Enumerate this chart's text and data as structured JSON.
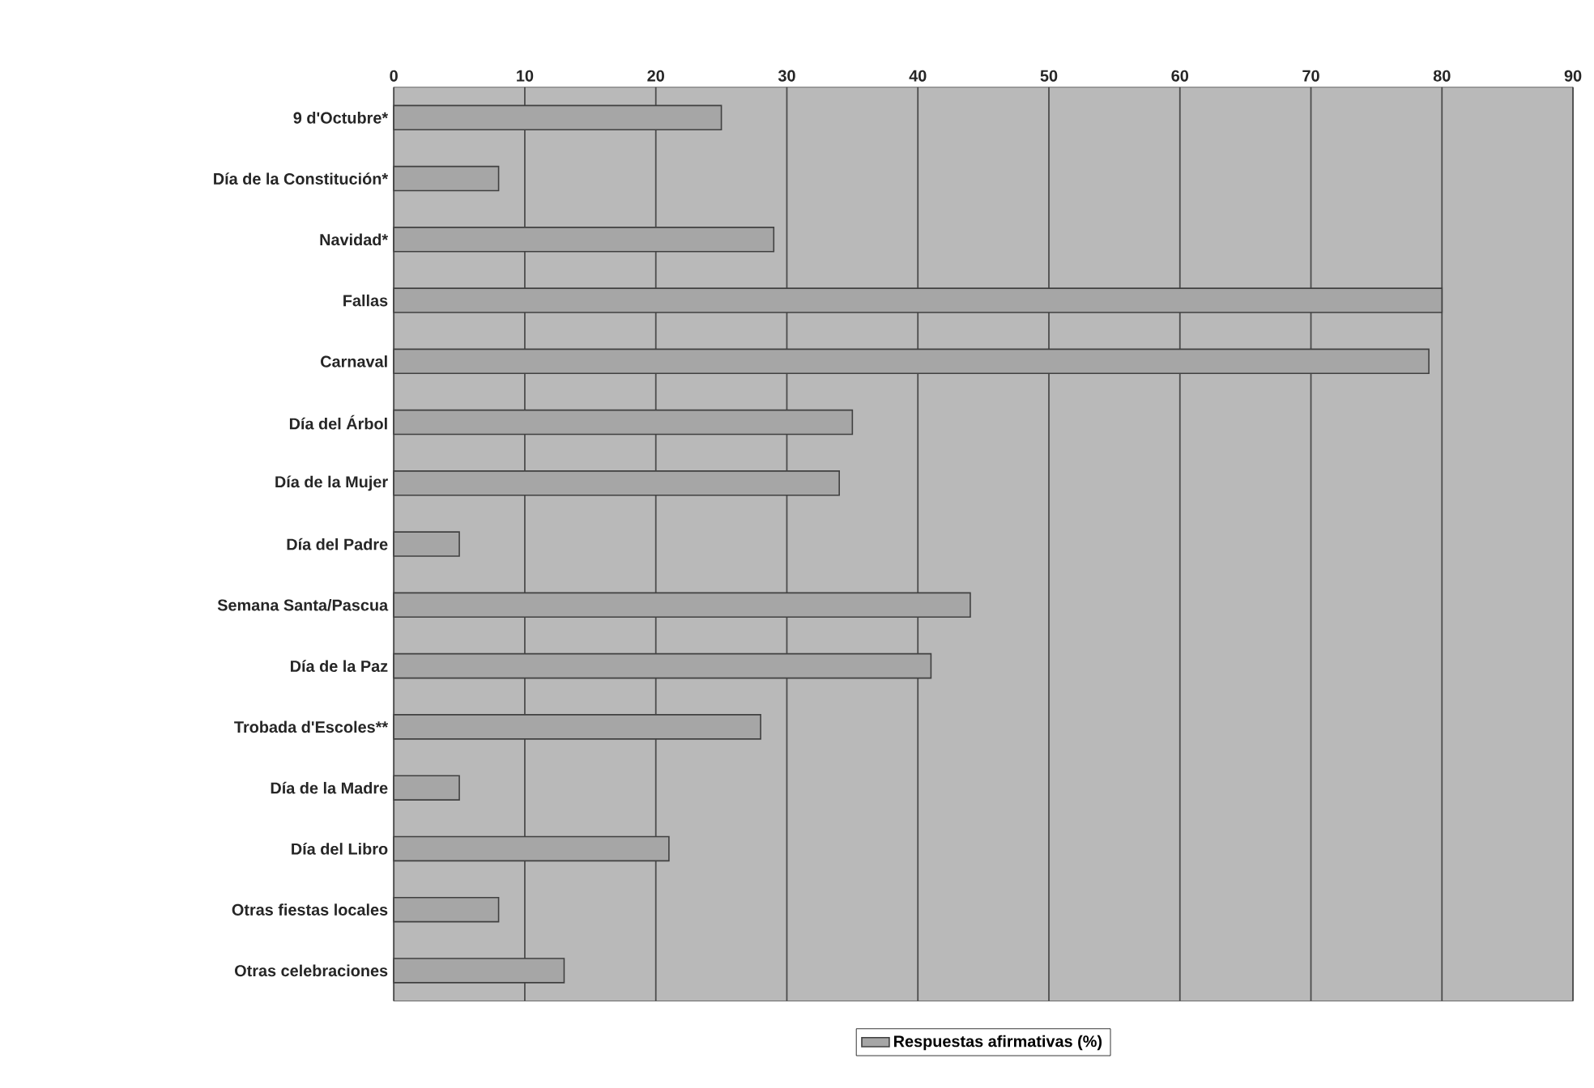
{
  "chart_data": {
    "type": "bar",
    "orientation": "horizontal",
    "categories": [
      "9 d'Octubre*",
      "Día de la Constitución*",
      "Navidad*",
      "Fallas",
      "Carnaval",
      "Día del Árbol",
      "Día de la Mujer",
      "Día del Padre",
      "Semana Santa/Pascua",
      "Día de la Paz",
      "Trobada d'Escoles**",
      "Día de la Madre",
      "Día del Libro",
      "Otras fiestas locales",
      "Otras celebraciones"
    ],
    "series": [
      {
        "name": "Respuestas afirmativas (%)",
        "color": "#a6a6a6",
        "values": [
          25,
          8,
          29,
          80,
          79,
          35,
          34,
          5,
          44,
          41,
          28,
          5,
          21,
          8,
          13
        ]
      }
    ],
    "xlim": [
      0,
      90
    ],
    "xticks": [
      0,
      10,
      20,
      30,
      40,
      50,
      60,
      70,
      80,
      90
    ],
    "grid": "x",
    "legend": "bottom"
  }
}
